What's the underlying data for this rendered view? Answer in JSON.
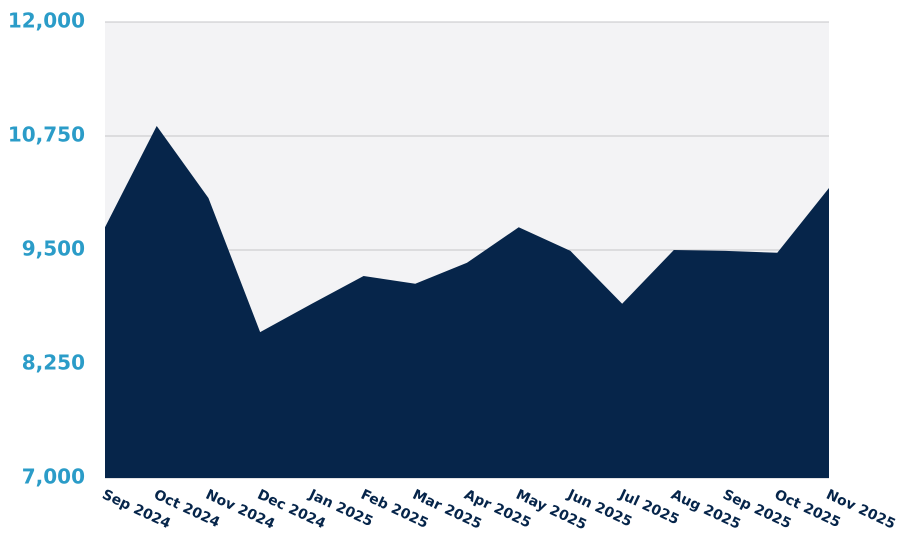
{
  "chart_data": {
    "type": "area",
    "categories": [
      "Sep 2024",
      "Oct 2024",
      "Nov 2024",
      "Dec 2024",
      "Jan 2025",
      "Feb 2025",
      "Mar 2025",
      "Apr 2025",
      "May 2025",
      "Jun 2025",
      "Jul 2025",
      "Aug 2025",
      "Sep 2025",
      "Oct 2025",
      "Nov 2025"
    ],
    "values": [
      9750,
      10860,
      10070,
      8600,
      8910,
      9215,
      9130,
      9360,
      9750,
      9490,
      8910,
      9500,
      9490,
      9470,
      10180
    ],
    "color": "#06254a",
    "ylim": [
      7000,
      12000
    ],
    "yticks": [
      {
        "value": 7000,
        "label": "7,000"
      },
      {
        "value": 8250,
        "label": "8,250"
      },
      {
        "value": 9500,
        "label": "9,500"
      },
      {
        "value": 10750,
        "label": "10,750"
      },
      {
        "value": 12000,
        "label": "12,000"
      }
    ],
    "grid": true
  }
}
